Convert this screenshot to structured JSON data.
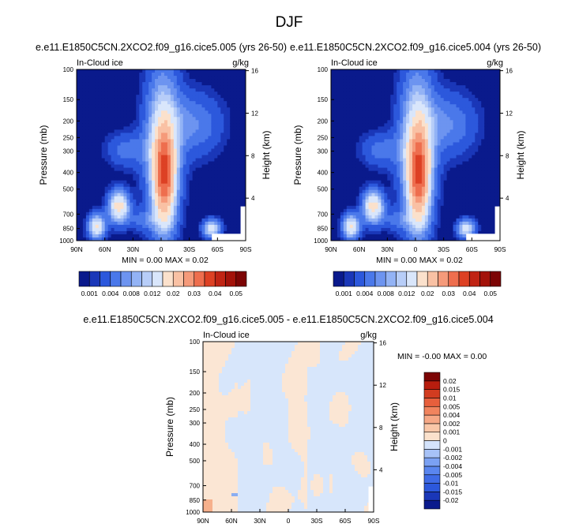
{
  "figure": {
    "title": "DJF"
  },
  "colorbar_horizontal": {
    "colors": [
      "#0a1a8c",
      "#1a37b8",
      "#2c58dc",
      "#4a78ea",
      "#6d94f0",
      "#93b3f5",
      "#b7cdf8",
      "#d9e6fb",
      "#fbe1cc",
      "#f9c1a4",
      "#f59a7a",
      "#ee6e4e",
      "#dd4124",
      "#c02414",
      "#a3120a",
      "#7c0505"
    ],
    "labels": [
      "0.001",
      "0.004",
      "0.008",
      "0.012",
      "0.02",
      "0.03",
      "0.04",
      "0.05"
    ]
  },
  "colorbar_vertical": {
    "colors": [
      "#0a1a8c",
      "#1a37b8",
      "#2c58dc",
      "#3f6be6",
      "#5a86ef",
      "#7ba1f3",
      "#a7c2f7",
      "#d4e3fb",
      "#fbe1cc",
      "#f9c7a8",
      "#f6a886",
      "#f1845e",
      "#e75f3c",
      "#d23c20",
      "#b81d0e",
      "#7c0505"
    ],
    "labels": [
      "-0.02",
      "-0.015",
      "-0.01",
      "-0.005",
      "-0.004",
      "-0.002",
      "-0.001",
      "0",
      "0.001",
      "0.002",
      "0.004",
      "0.005",
      "0.01",
      "0.015",
      "0.02"
    ]
  },
  "chart_data": [
    {
      "type": "heatmap",
      "title": "e.e11.E1850C5CN.2XCO2.f09_g16.cice5.005 (yrs 26-50)",
      "left_string": "In-Cloud ice",
      "right_string": "g/kg",
      "xlabel": "",
      "ylabel": "Pressure (mb)",
      "ylabel_right": "Height (km)",
      "x_ticks": [
        "90N",
        "60N",
        "30N",
        "0",
        "30S",
        "60S",
        "90S"
      ],
      "y_ticks": [
        "100",
        "150",
        "200",
        "250",
        "300",
        "400",
        "500",
        "700",
        "850",
        "1000"
      ],
      "y_ticks_right": [
        "16",
        "12",
        "8",
        "4"
      ],
      "xlim": [
        90,
        -90
      ],
      "ylim": [
        1000,
        100
      ],
      "min_max_text": "MIN =   0.00   MAX =   0.02",
      "field_min": 0.0,
      "field_max": 0.02
    },
    {
      "type": "heatmap",
      "title": "e.e11.E1850C5CN.2XCO2.f09_g16.cice5.004 (yrs 26-50)",
      "left_string": "In-Cloud ice",
      "right_string": "g/kg",
      "xlabel": "",
      "ylabel": "Pressure (mb)",
      "ylabel_right": "Height (km)",
      "x_ticks": [
        "90N",
        "60N",
        "30N",
        "0",
        "30S",
        "60S",
        "90S"
      ],
      "y_ticks": [
        "100",
        "150",
        "200",
        "250",
        "300",
        "400",
        "500",
        "700",
        "850",
        "1000"
      ],
      "y_ticks_right": [
        "16",
        "12",
        "8",
        "4"
      ],
      "xlim": [
        90,
        -90
      ],
      "ylim": [
        1000,
        100
      ],
      "min_max_text": "MIN =   0.00   MAX =   0.02",
      "field_min": 0.0,
      "field_max": 0.02
    },
    {
      "type": "heatmap",
      "title": "e.e11.E1850C5CN.2XCO2.f09_g16.cice5.005 - e.e11.E1850C5CN.2XCO2.f09_g16.cice5.004",
      "left_string": "In-Cloud ice",
      "right_string": "g/kg",
      "xlabel": "",
      "ylabel": "Pressure (mb)",
      "ylabel_right": "Height (km)",
      "x_ticks": [
        "90N",
        "60N",
        "30N",
        "0",
        "30S",
        "60S",
        "90S"
      ],
      "y_ticks": [
        "100",
        "150",
        "200",
        "250",
        "300",
        "400",
        "500",
        "700",
        "850",
        "1000"
      ],
      "y_ticks_right": [
        "16",
        "12",
        "8",
        "4"
      ],
      "xlim": [
        90,
        -90
      ],
      "ylim": [
        1000,
        100
      ],
      "min_max_text": "MIN =  -0.00   MAX =   0.00",
      "field_min": -0.0,
      "field_max": 0.0
    }
  ]
}
